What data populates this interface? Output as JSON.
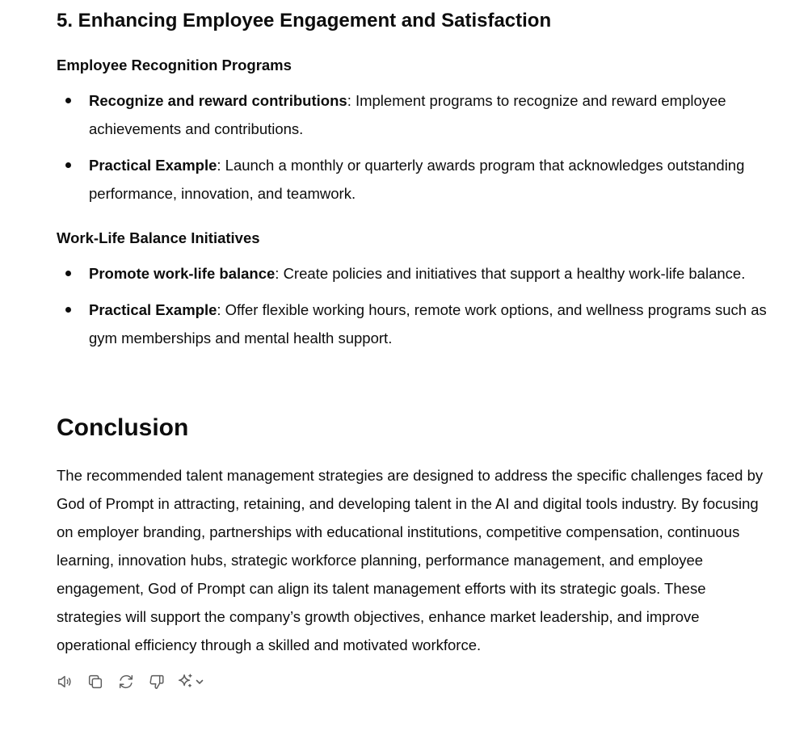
{
  "section": {
    "title": "5. Enhancing Employee Engagement and Satisfaction"
  },
  "recognition": {
    "heading": "Employee Recognition Programs",
    "items": [
      {
        "bold": "Recognize and reward contributions",
        "text": ": Implement programs to recognize and reward employee achievements and contributions."
      },
      {
        "bold": "Practical Example",
        "text": ": Launch a monthly or quarterly awards program that acknowledges outstanding performance, innovation, and teamwork."
      }
    ]
  },
  "worklife": {
    "heading": "Work-Life Balance Initiatives",
    "items": [
      {
        "bold": "Promote work-life balance",
        "text": ": Create policies and initiatives that support a healthy work-life balance."
      },
      {
        "bold": "Practical Example",
        "text": ": Offer flexible working hours, remote work options, and wellness programs such as gym memberships and mental health support."
      }
    ]
  },
  "conclusion": {
    "title": "Conclusion",
    "body": "The recommended talent management strategies are designed to address the specific challenges faced by God of Prompt in attracting, retaining, and developing talent in the AI and digital tools industry. By focusing on employer branding, partnerships with educational institutions, competitive compensation, continuous learning, innovation hubs, strategic workforce planning, performance management, and employee engagement, God of Prompt can align its talent management efforts with its strategic goals. These strategies will support the company’s growth objectives, enhance market leadership, and improve operational efficiency through a skilled and motivated workforce."
  },
  "actions": {
    "icons": [
      "read-aloud-icon",
      "copy-icon",
      "regenerate-icon",
      "thumbs-down-icon",
      "sparkle-icon",
      "chevron-down-icon"
    ]
  },
  "colors": {
    "text": "#0d0d0d",
    "icon": "#5d5d5d",
    "background": "#ffffff"
  }
}
